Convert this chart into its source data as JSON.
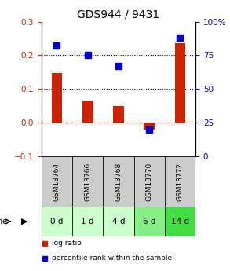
{
  "title": "GDS944 / 9431",
  "categories": [
    "GSM13764",
    "GSM13766",
    "GSM13768",
    "GSM13770",
    "GSM13772"
  ],
  "time_labels": [
    "0 d",
    "1 d",
    "4 d",
    "6 d",
    "14 d"
  ],
  "log_ratio": [
    0.148,
    0.065,
    0.05,
    -0.02,
    0.235
  ],
  "percentile_rank": [
    82,
    75,
    67,
    20,
    88
  ],
  "bar_color": "#cc2200",
  "dot_color": "#0000cc",
  "ylim_left": [
    -0.1,
    0.3
  ],
  "ylim_right": [
    0,
    100
  ],
  "yticks_left": [
    -0.1,
    0.0,
    0.1,
    0.2,
    0.3
  ],
  "yticks_right": [
    0,
    25,
    50,
    75,
    100
  ],
  "yticklabels_right": [
    "0",
    "25",
    "50",
    "75",
    "100%"
  ],
  "hlines_dotted": [
    0.1,
    0.2
  ],
  "hline_dashed": 0.0,
  "grid_color": "#000000",
  "dashed_color": "#cc2200",
  "gsm_bg": "#cccccc",
  "time_bg_colors": [
    "#ccffcc",
    "#ccffcc",
    "#ccffcc",
    "#88ee88",
    "#44dd44"
  ],
  "legend_labels": [
    "log ratio",
    "percentile rank within the sample"
  ]
}
